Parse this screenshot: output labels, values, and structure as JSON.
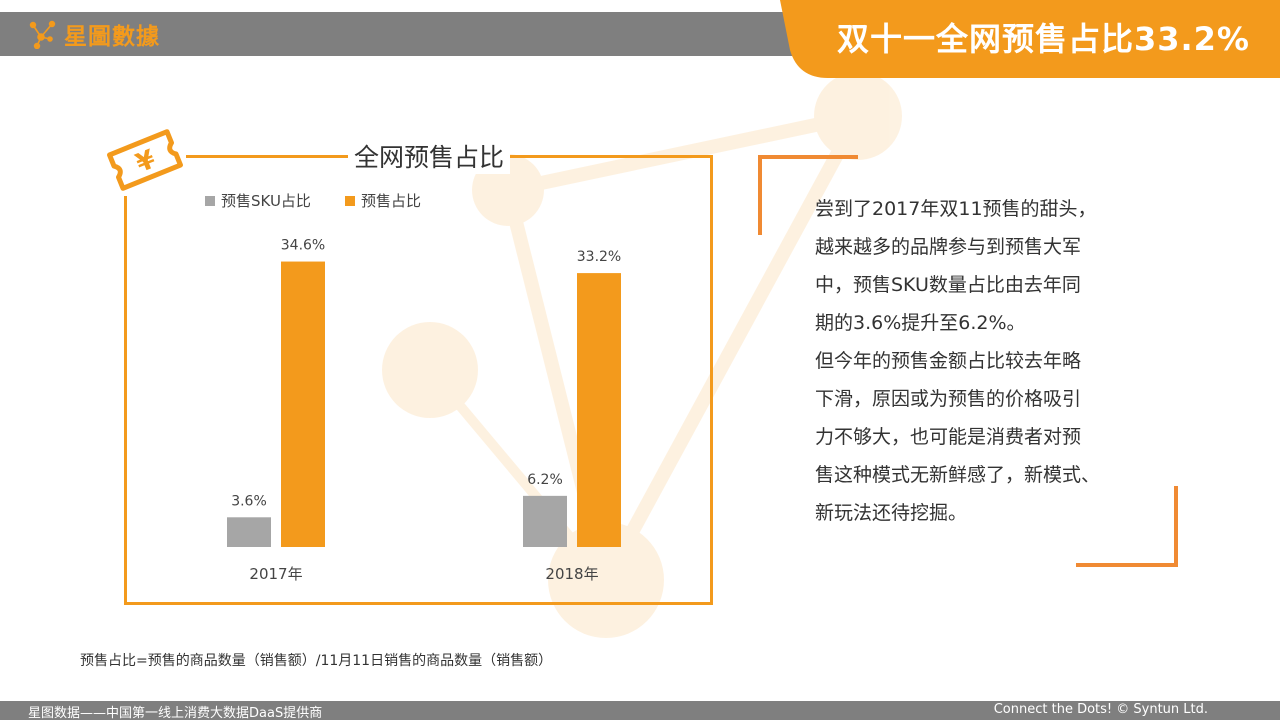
{
  "header": {
    "logo_text": "星圖數據",
    "title": "双十一全网预售占比33.2%"
  },
  "colors": {
    "accent": "#f39a1c",
    "gray": "#a6a6a6",
    "header_gray": "#7f7f7f"
  },
  "chart_data": {
    "type": "bar",
    "title": "全网预售占比",
    "categories": [
      "2017年",
      "2018年"
    ],
    "series": [
      {
        "name": "预售SKU占比",
        "values": [
          3.6,
          6.2
        ],
        "labels": [
          "3.6%",
          "6.2%"
        ],
        "color": "#a6a6a6"
      },
      {
        "name": "预售占比",
        "values": [
          34.6,
          33.2
        ],
        "labels": [
          "34.6%",
          "33.2%"
        ],
        "color": "#f39a1c"
      }
    ],
    "ylim": [
      0,
      40
    ],
    "grid": false,
    "legend": "top-left"
  },
  "description": {
    "lines": [
      "尝到了2017年双11预售的甜头，",
      "越来越多的品牌参与到预售大军",
      "中，预售SKU数量占比由去年同",
      "期的3.6%提升至6.2%。",
      "但今年的预售金额占比较去年略",
      "下滑，原因或为预售的价格吸引",
      "力不够大，也可能是消费者对预",
      "售这种模式无新鲜感了，新模式、",
      "新玩法还待挖掘。"
    ]
  },
  "footnote": "预售占比=预售的商品数量（销售额）/11月11日销售的商品数量（销售额）",
  "footer": {
    "left": "星图数据——中国第一线上消费大数据DaaS提供商",
    "right": "Connect the Dots! © Syntun Ltd."
  }
}
